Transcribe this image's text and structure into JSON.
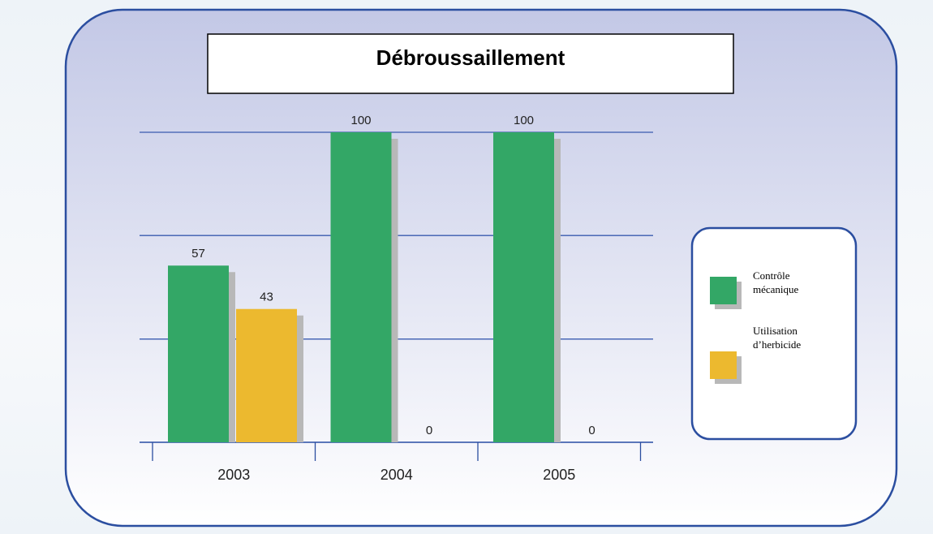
{
  "chart_data": {
    "type": "bar",
    "title": "Débroussaillement",
    "categories": [
      "2003",
      "2004",
      "2005"
    ],
    "series": [
      {
        "name": "Contrôle mécanique",
        "color": "#33a766",
        "values": [
          57,
          100,
          100
        ]
      },
      {
        "name": "Utilisation d’herbicide",
        "color": "#ecb92f",
        "values": [
          43,
          0,
          0
        ]
      }
    ],
    "ylim": [
      0,
      100
    ],
    "yticks": [
      0,
      33.3,
      66.7,
      100
    ],
    "grid": true,
    "legend": "right"
  }
}
